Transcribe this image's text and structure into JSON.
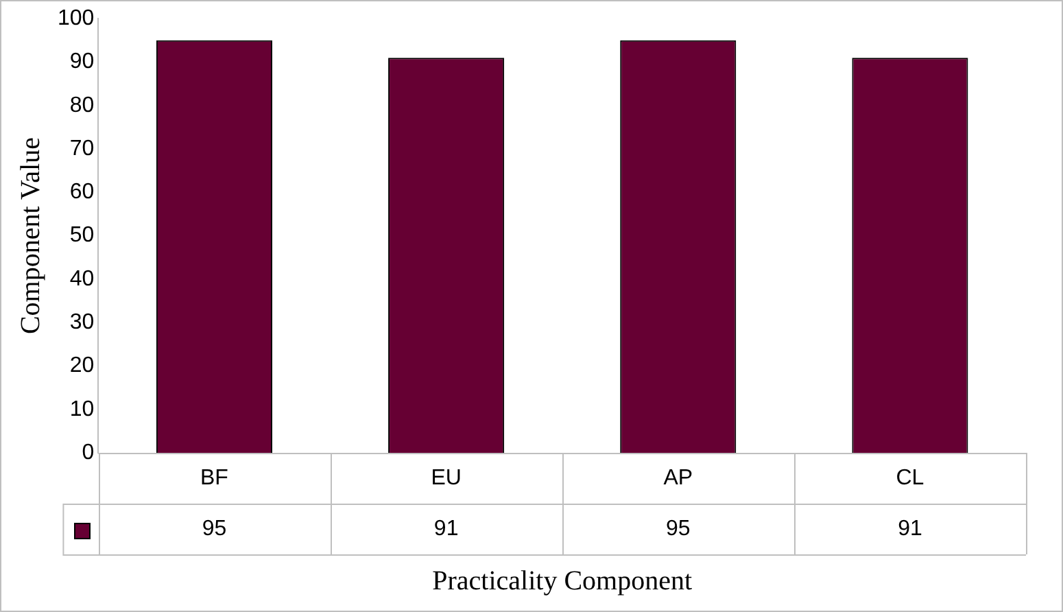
{
  "chart_data": {
    "type": "bar",
    "xlabel": "Practicality Component",
    "ylabel": "Component Value",
    "categories": [
      "BF",
      "EU",
      "AP",
      "CL"
    ],
    "values": [
      95,
      91,
      95,
      91
    ],
    "color": "#660033",
    "ylim": [
      0,
      100
    ],
    "yticks": [
      0,
      10,
      20,
      30,
      40,
      50,
      60,
      70,
      80,
      90,
      100
    ],
    "grid": false,
    "data_labels": true
  }
}
